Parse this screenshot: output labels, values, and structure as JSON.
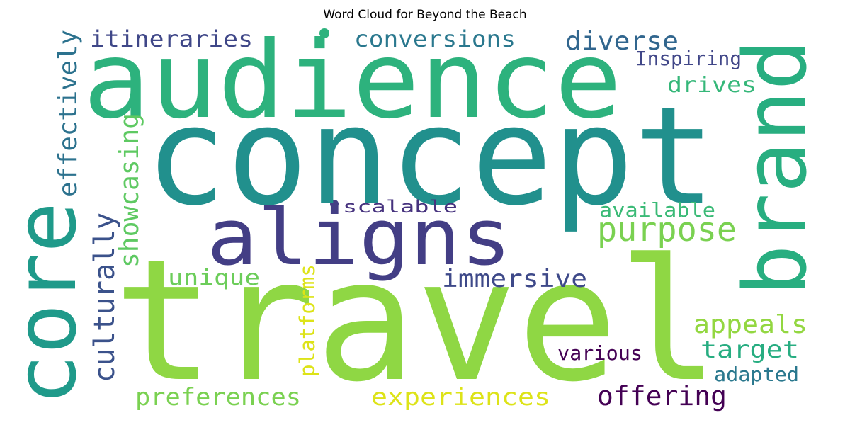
{
  "chart_data": {
    "type": "wordcloud",
    "title": "Word Cloud for Beyond the Beach",
    "words": [
      {
        "text": "travel",
        "color": "#8fd744"
      },
      {
        "text": "concept",
        "color": "#21908d"
      },
      {
        "text": "audience",
        "color": "#2db27d"
      },
      {
        "text": "aligns",
        "color": "#433e85"
      },
      {
        "text": "brand",
        "color": "#28ae80"
      },
      {
        "text": "core",
        "color": "#1f9a8a"
      },
      {
        "text": "purpose",
        "color": "#7ad151"
      },
      {
        "text": "itineraries",
        "color": "#3f4788"
      },
      {
        "text": "conversions",
        "color": "#2a788e"
      },
      {
        "text": "diverse",
        "color": "#31668e"
      },
      {
        "text": "Inspiring",
        "color": "#404688"
      },
      {
        "text": "drives",
        "color": "#35b779"
      },
      {
        "text": "effectively",
        "color": "#2c728e"
      },
      {
        "text": "showcasing",
        "color": "#5ec962"
      },
      {
        "text": "culturally",
        "color": "#3b528b"
      },
      {
        "text": "scalable",
        "color": "#46327e"
      },
      {
        "text": "available",
        "color": "#3aba76"
      },
      {
        "text": "unique",
        "color": "#6ccd5a"
      },
      {
        "text": "immersive",
        "color": "#3e4989"
      },
      {
        "text": "platforms",
        "color": "#dde318"
      },
      {
        "text": "appeals",
        "color": "#93d741"
      },
      {
        "text": "target",
        "color": "#27ad81"
      },
      {
        "text": "various",
        "color": "#440154"
      },
      {
        "text": "adapted",
        "color": "#2a788e"
      },
      {
        "text": "preferences",
        "color": "#7ad151"
      },
      {
        "text": "experiences",
        "color": "#dde318"
      },
      {
        "text": "offering",
        "color": "#440154"
      }
    ]
  }
}
